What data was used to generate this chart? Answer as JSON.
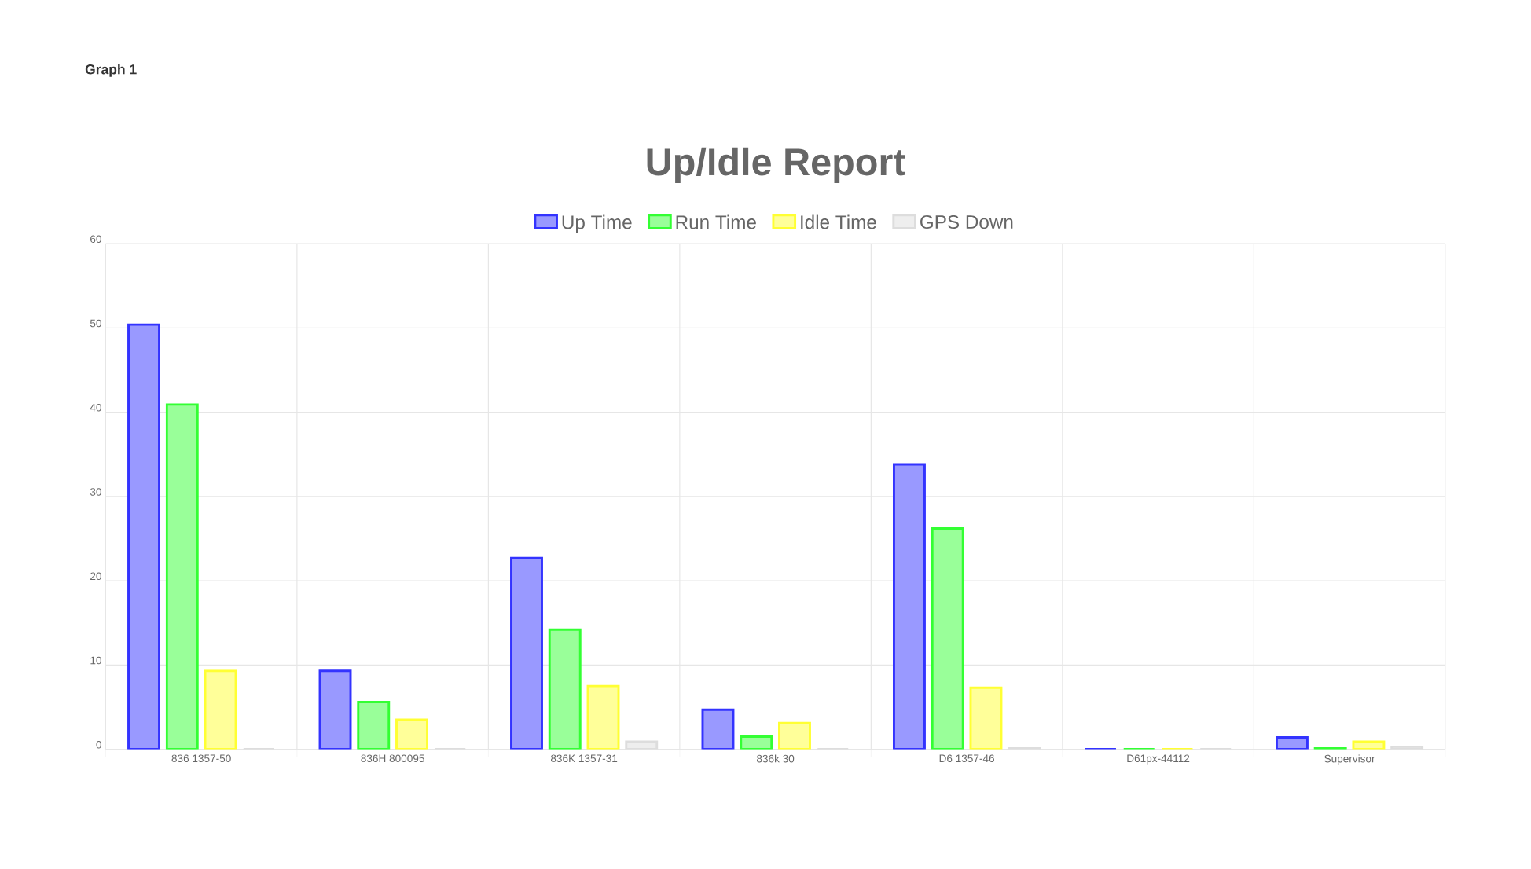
{
  "chart_data": {
    "type": "bar",
    "title": "Up/Idle Report",
    "annotations": [
      "Graph 1"
    ],
    "categories": [
      "836 1357-50",
      "836H 800095",
      "836K 1357-31",
      "836k 30",
      "D6 1357-46",
      "D61px-44112",
      "Supervisor"
    ],
    "series": [
      {
        "name": "Up Time",
        "color": "#9999ff",
        "values": [
          50.4,
          9.3,
          22.7,
          4.7,
          33.8,
          0,
          1.4
        ]
      },
      {
        "name": "Run Time",
        "color": "#99ff99",
        "values": [
          40.9,
          5.6,
          14.2,
          1.5,
          26.2,
          0,
          0.1
        ]
      },
      {
        "name": "Idle Time",
        "color": "#ffff99",
        "values": [
          9.3,
          3.5,
          7.5,
          3.1,
          7.3,
          0,
          0.9
        ]
      },
      {
        "name": "GPS Down",
        "color": "#eeeeee",
        "values": [
          0,
          0,
          0.9,
          0,
          0.1,
          0,
          0.3
        ]
      }
    ],
    "ylim": [
      0,
      60
    ],
    "yticks": [
      0,
      10,
      20,
      30,
      40,
      50,
      60
    ],
    "grid": true,
    "legend": "top"
  }
}
